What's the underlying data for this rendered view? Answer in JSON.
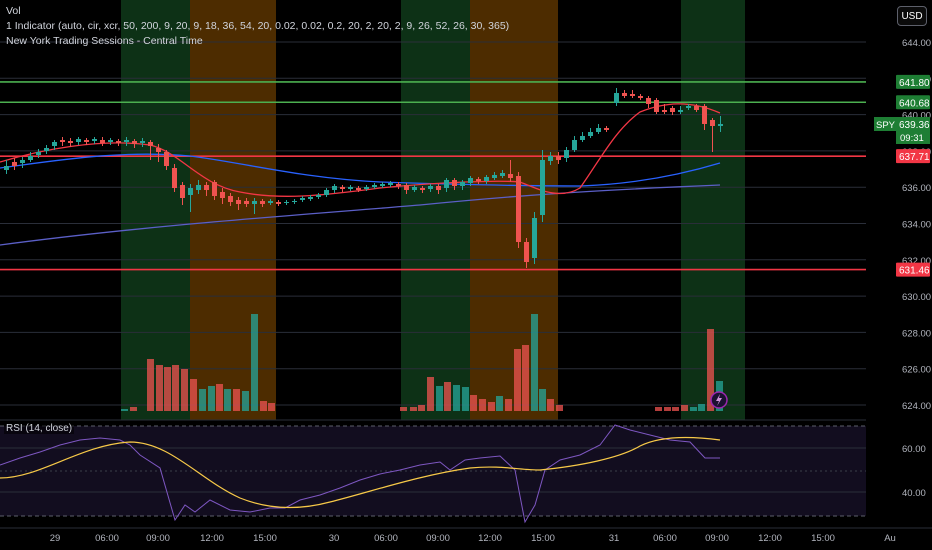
{
  "legend": {
    "vol_label": "Vol",
    "indicator_label": "1 Indicator (auto, cir, xcr, 50, 200, 9, 20, 9, 18, 36, 54, 20, 0.02, 0.02, 0.2, 20, 2, 20, 2, 9, 26, 52, 26, 30, 365)",
    "sessions_label": "New York Trading Sessions - Central Time"
  },
  "currency_button": "USD",
  "price_axis": {
    "ticks": [
      "644.00",
      "642.00",
      "640.00",
      "638.00",
      "636.00",
      "634.00",
      "632.00",
      "630.00",
      "628.00",
      "626.00",
      "624.00"
    ],
    "line_labels": [
      {
        "price": "641.80",
        "color": "#26a69a",
        "bg": "#1e7e34"
      },
      {
        "price": "640.68",
        "color": "#26a69a",
        "bg": "#1e7e34"
      },
      {
        "price": "637.71",
        "color": "#f23645",
        "bg": "#f23645"
      },
      {
        "price": "631.46",
        "color": "#f23645",
        "bg": "#f23645"
      }
    ],
    "symbol": "SPY",
    "last_price": "639.36",
    "countdown": "09:31"
  },
  "time_axis": {
    "labels": [
      "29",
      "06:00",
      "09:00",
      "12:00",
      "15:00",
      "30",
      "06:00",
      "09:00",
      "12:00",
      "15:00",
      "31",
      "06:00",
      "09:00",
      "12:00",
      "15:00",
      "Au"
    ]
  },
  "rsi": {
    "label": "RSI (14, close)",
    "ticks": [
      "60.00",
      "40.00"
    ]
  },
  "colors": {
    "up": "#26a69a",
    "down": "#ef5350",
    "ema_red": "#f23645",
    "sma_blue": "#2962ff",
    "sma_purple": "#5b5fc7",
    "rsi_line": "#7e57c2",
    "rsi_ma": "#f7c948",
    "session_green": "#0f3a1a",
    "session_orange": "#5a3400"
  }
}
